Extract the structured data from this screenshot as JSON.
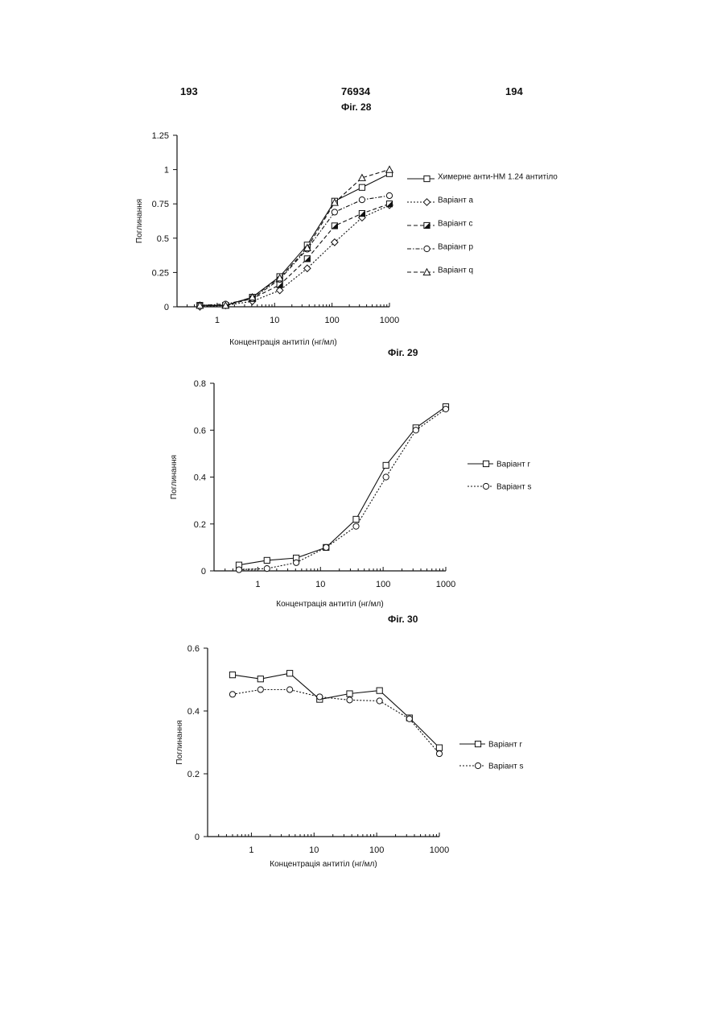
{
  "header": {
    "page_left": "193",
    "patent_number": "76934",
    "page_right": "194"
  },
  "chart_data": [
    {
      "type": "line",
      "title": "Фіг. 28",
      "xlabel": "Концентрація антитіл (нг/мл)",
      "ylabel": "Поглинання",
      "x_scale": "log",
      "xlim": [
        0.2,
        1000
      ],
      "ylim": [
        0,
        1.25
      ],
      "x_ticks": [
        "1",
        "10",
        "100",
        "1000"
      ],
      "y_ticks": [
        "0",
        "0.25",
        "0.5",
        "0.75",
        "1",
        "1.25"
      ],
      "legend": "right",
      "series": [
        {
          "name": "Химерне анти-HM 1.24 антитіло",
          "marker": "square",
          "dash": "solid",
          "x": [
            0.5,
            1.4,
            4.1,
            12.3,
            37,
            111,
            333,
            1000
          ],
          "y": [
            0.01,
            0.01,
            0.07,
            0.22,
            0.45,
            0.77,
            0.87,
            0.97
          ]
        },
        {
          "name": "Варіант а",
          "marker": "diamond",
          "dash": "dotted",
          "x": [
            0.5,
            1.4,
            4.1,
            12.3,
            37,
            111,
            333,
            1000
          ],
          "y": [
            0.0,
            0.01,
            0.04,
            0.12,
            0.28,
            0.47,
            0.65,
            0.74
          ]
        },
        {
          "name": "Варіант с",
          "marker": "halfsquare",
          "dash": "dashed",
          "x": [
            0.5,
            1.4,
            4.1,
            12.3,
            37,
            111,
            333,
            1000
          ],
          "y": [
            0.01,
            0.01,
            0.06,
            0.16,
            0.35,
            0.59,
            0.68,
            0.75
          ]
        },
        {
          "name": "Варіант р",
          "marker": "circle",
          "dash": "dashdot",
          "x": [
            0.5,
            1.4,
            4.1,
            12.3,
            37,
            111,
            333,
            1000
          ],
          "y": [
            0.01,
            0.02,
            0.06,
            0.2,
            0.42,
            0.69,
            0.78,
            0.81
          ]
        },
        {
          "name": "Варіант q",
          "marker": "triangle",
          "dash": "dashed",
          "x": [
            0.5,
            1.4,
            4.1,
            12.3,
            37,
            111,
            333,
            1000
          ],
          "y": [
            0.01,
            0.01,
            0.07,
            0.21,
            0.43,
            0.76,
            0.94,
            1.0
          ]
        }
      ]
    },
    {
      "type": "line",
      "title": "Фіг. 29",
      "xlabel": "Концентрація антитіл (нг/мл)",
      "ylabel": "Поглинання",
      "x_scale": "log",
      "xlim": [
        0.2,
        1000
      ],
      "ylim": [
        0,
        0.8
      ],
      "x_ticks": [
        "1",
        "10",
        "100",
        "1000"
      ],
      "y_ticks": [
        "0",
        "0.2",
        "0.4",
        "0.6",
        "0.8"
      ],
      "legend": "right",
      "series": [
        {
          "name": "Варіант r",
          "marker": "square",
          "dash": "solid",
          "x": [
            0.5,
            1.4,
            4.1,
            12.3,
            37,
            111,
            333,
            1000
          ],
          "y": [
            0.025,
            0.045,
            0.055,
            0.1,
            0.22,
            0.45,
            0.61,
            0.7
          ]
        },
        {
          "name": "Варіант s",
          "marker": "circle",
          "dash": "dotted",
          "x": [
            0.5,
            1.4,
            4.1,
            12.3,
            37,
            111,
            333,
            1000
          ],
          "y": [
            0.005,
            0.01,
            0.035,
            0.1,
            0.19,
            0.4,
            0.6,
            0.69
          ]
        }
      ]
    },
    {
      "type": "line",
      "title": "Фіг. 30",
      "xlabel": "Концентрація антитіл (нг/мл)",
      "ylabel": "Поглинання",
      "x_scale": "log",
      "xlim": [
        0.2,
        1000
      ],
      "ylim": [
        0,
        0.6
      ],
      "x_ticks": [
        "1",
        "10",
        "100",
        "1000"
      ],
      "y_ticks": [
        "0",
        "0.2",
        "0.4",
        "0.6"
      ],
      "legend": "right",
      "series": [
        {
          "name": "Варіант r",
          "marker": "square",
          "dash": "solid",
          "x": [
            0.5,
            1.4,
            4.1,
            12.3,
            37,
            111,
            333,
            1000
          ],
          "y": [
            0.515,
            0.502,
            0.52,
            0.437,
            0.455,
            0.465,
            0.378,
            0.283
          ]
        },
        {
          "name": "Варіант s",
          "marker": "circle",
          "dash": "dotted",
          "x": [
            0.5,
            1.4,
            4.1,
            12.3,
            37,
            111,
            333,
            1000
          ],
          "y": [
            0.453,
            0.468,
            0.468,
            0.445,
            0.435,
            0.432,
            0.375,
            0.264
          ]
        }
      ]
    }
  ]
}
